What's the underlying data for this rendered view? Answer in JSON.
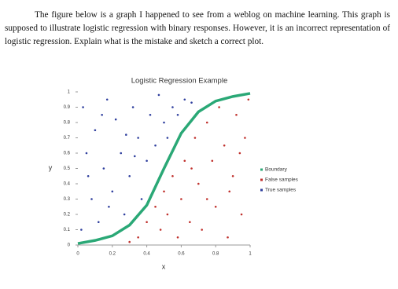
{
  "document": {
    "paragraph": "The figure below is a graph I happened to see from a weblog on machine learning. This graph is supposed to illustrate logistic regression with binary responses. However, it is an incorrect representation of logistic regression. Explain what is the mistake and sketch a correct plot."
  },
  "chart_data": {
    "type": "scatter",
    "title": "Logistic Regression Example",
    "x_label": "x",
    "y_label": "y",
    "xlim": [
      0,
      1
    ],
    "ylim": [
      0,
      1
    ],
    "xticks": [
      0,
      0.2,
      0.4,
      0.6,
      0.8,
      1
    ],
    "yticks": [
      0,
      0.1,
      0.2,
      0.3,
      0.4,
      0.5,
      0.6,
      0.7,
      0.8,
      0.9,
      1
    ],
    "grid": false,
    "legend": "right",
    "series": [
      {
        "name": "Boundary",
        "type": "line",
        "color": "#2aa876",
        "x": [
          0,
          0.1,
          0.2,
          0.3,
          0.4,
          0.5,
          0.6,
          0.7,
          0.8,
          0.9,
          1
        ],
        "values": [
          0.01,
          0.03,
          0.06,
          0.13,
          0.26,
          0.5,
          0.73,
          0.87,
          0.94,
          0.97,
          0.99
        ]
      },
      {
        "name": "False samples",
        "type": "scatter",
        "color": "#c0302c",
        "x": [
          0.35,
          0.4,
          0.45,
          0.48,
          0.5,
          0.52,
          0.55,
          0.58,
          0.6,
          0.62,
          0.65,
          0.68,
          0.7,
          0.72,
          0.75,
          0.78,
          0.8,
          0.82,
          0.85,
          0.87,
          0.9,
          0.92,
          0.95,
          0.97,
          0.99,
          0.75,
          0.88,
          0.66,
          0.94,
          0.3
        ],
        "values": [
          0.05,
          0.15,
          0.25,
          0.1,
          0.35,
          0.2,
          0.45,
          0.05,
          0.3,
          0.55,
          0.15,
          0.7,
          0.4,
          0.1,
          0.8,
          0.55,
          0.25,
          0.9,
          0.65,
          0.05,
          0.45,
          0.85,
          0.2,
          0.7,
          0.95,
          0.3,
          0.35,
          0.5,
          0.6,
          0.02
        ]
      },
      {
        "name": "True samples",
        "type": "scatter",
        "color": "#2f3f9e",
        "x": [
          0.03,
          0.05,
          0.08,
          0.1,
          0.12,
          0.15,
          0.17,
          0.2,
          0.22,
          0.25,
          0.27,
          0.3,
          0.32,
          0.35,
          0.37,
          0.4,
          0.42,
          0.45,
          0.47,
          0.5,
          0.52,
          0.55,
          0.58,
          0.62,
          0.66,
          0.02,
          0.06,
          0.14,
          0.18,
          0.28,
          0.33
        ],
        "values": [
          0.9,
          0.6,
          0.3,
          0.75,
          0.15,
          0.5,
          0.95,
          0.35,
          0.82,
          0.6,
          0.2,
          0.45,
          0.9,
          0.7,
          0.3,
          0.55,
          0.85,
          0.65,
          0.98,
          0.8,
          0.7,
          0.9,
          0.85,
          0.95,
          0.93,
          0.1,
          0.45,
          0.85,
          0.25,
          0.72,
          0.58
        ]
      }
    ]
  }
}
